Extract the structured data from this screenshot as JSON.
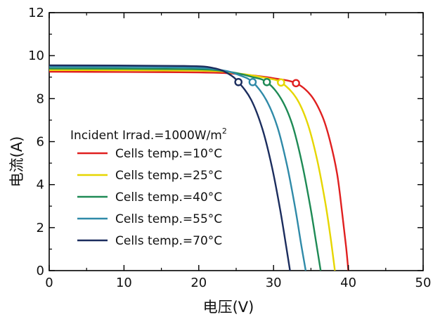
{
  "chart_data": {
    "type": "line",
    "xlabel": "电压(V)",
    "ylabel": "电流(A)",
    "xlim": [
      0,
      50
    ],
    "ylim": [
      0,
      12
    ],
    "x_ticks": [
      "0",
      "10",
      "20",
      "30",
      "40",
      "50"
    ],
    "y_ticks": [
      "0",
      "2",
      "4",
      "6",
      "8",
      "10",
      "12"
    ],
    "grid": false,
    "legend_placement": "left-center",
    "legend_title": "Incident Irrad.=1000W/m",
    "legend_title_sup": "2",
    "series": [
      {
        "name": "Cells temp.=10°C",
        "color": "#e02020",
        "points": [
          [
            0,
            9.25
          ],
          [
            20,
            9.22
          ],
          [
            26,
            9.12
          ],
          [
            30,
            8.95
          ],
          [
            33.0,
            8.72
          ],
          [
            35,
            8.15
          ],
          [
            36.5,
            7.2
          ],
          [
            37.5,
            6.1
          ],
          [
            38.5,
            4.5
          ],
          [
            39.2,
            2.6
          ],
          [
            39.7,
            1.1
          ],
          [
            40.0,
            0
          ]
        ],
        "mpp": [
          33.0,
          8.72
        ]
      },
      {
        "name": "Cells temp.=25°C",
        "color": "#e6d600",
        "points": [
          [
            0,
            9.33
          ],
          [
            20,
            9.3
          ],
          [
            25,
            9.18
          ],
          [
            29,
            8.96
          ],
          [
            31.0,
            8.75
          ],
          [
            33,
            8.05
          ],
          [
            34.5,
            6.9
          ],
          [
            35.8,
            5.2
          ],
          [
            36.9,
            3.2
          ],
          [
            37.6,
            1.6
          ],
          [
            38.2,
            0
          ]
        ],
        "mpp": [
          31.0,
          8.75
        ]
      },
      {
        "name": "Cells temp.=40°C",
        "color": "#1e8a55",
        "points": [
          [
            0,
            9.4
          ],
          [
            19,
            9.37
          ],
          [
            24,
            9.25
          ],
          [
            27,
            9.02
          ],
          [
            29.1,
            8.77
          ],
          [
            31,
            8.0
          ],
          [
            32.5,
            6.8
          ],
          [
            33.8,
            5.0
          ],
          [
            34.9,
            3.0
          ],
          [
            35.7,
            1.3
          ],
          [
            36.3,
            0
          ]
        ],
        "mpp": [
          29.1,
          8.77
        ]
      },
      {
        "name": "Cells temp.=55°C",
        "color": "#2f8aa8",
        "points": [
          [
            0,
            9.48
          ],
          [
            18,
            9.45
          ],
          [
            23,
            9.33
          ],
          [
            25.5,
            9.08
          ],
          [
            27.2,
            8.77
          ],
          [
            29,
            7.95
          ],
          [
            30.5,
            6.7
          ],
          [
            31.8,
            4.9
          ],
          [
            32.9,
            2.9
          ],
          [
            33.7,
            1.2
          ],
          [
            34.3,
            0
          ]
        ],
        "mpp": [
          27.2,
          8.77
        ]
      },
      {
        "name": "Cells temp.=70°C",
        "color": "#1b2d5e",
        "points": [
          [
            0,
            9.55
          ],
          [
            18,
            9.52
          ],
          [
            22,
            9.42
          ],
          [
            24,
            9.15
          ],
          [
            25.3,
            8.77
          ],
          [
            27,
            7.95
          ],
          [
            28.5,
            6.6
          ],
          [
            29.8,
            4.8
          ],
          [
            30.9,
            2.8
          ],
          [
            31.7,
            1.1
          ],
          [
            32.2,
            0
          ]
        ],
        "mpp": [
          25.3,
          8.77
        ]
      }
    ]
  }
}
